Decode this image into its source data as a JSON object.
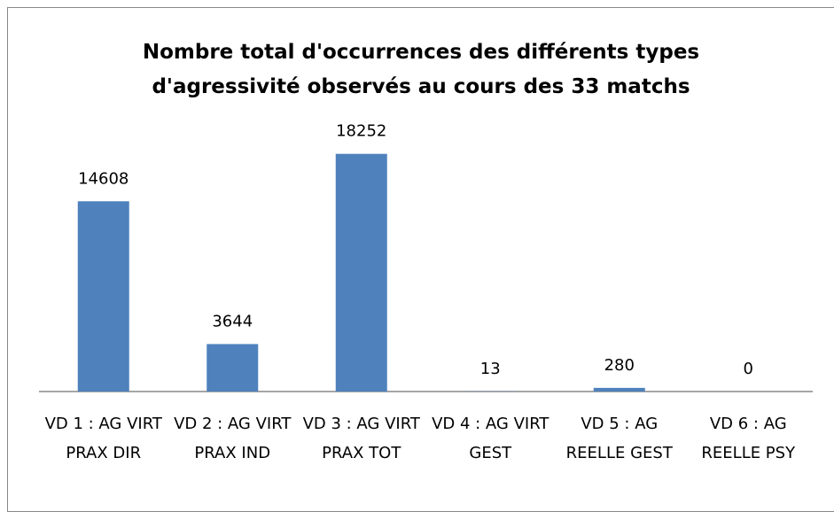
{
  "chart_data": {
    "type": "bar",
    "title": "Nombre total d'occurrences des différents types d'agressivité observés au cours des 33 matchs",
    "categories": [
      "VD 1 : AG VIRT PRAX DIR",
      "VD 2 : AG VIRT PRAX IND",
      "VD 3 : AG VIRT PRAX TOT",
      "VD 4 : AG VIRT GEST",
      "VD 5 : AG REELLE GEST",
      "VD 6 : AG REELLE PSY"
    ],
    "values": [
      14608,
      3644,
      18252,
      13,
      280,
      0
    ],
    "color": "#4f81bd",
    "ylim": [
      0,
      20000
    ]
  }
}
